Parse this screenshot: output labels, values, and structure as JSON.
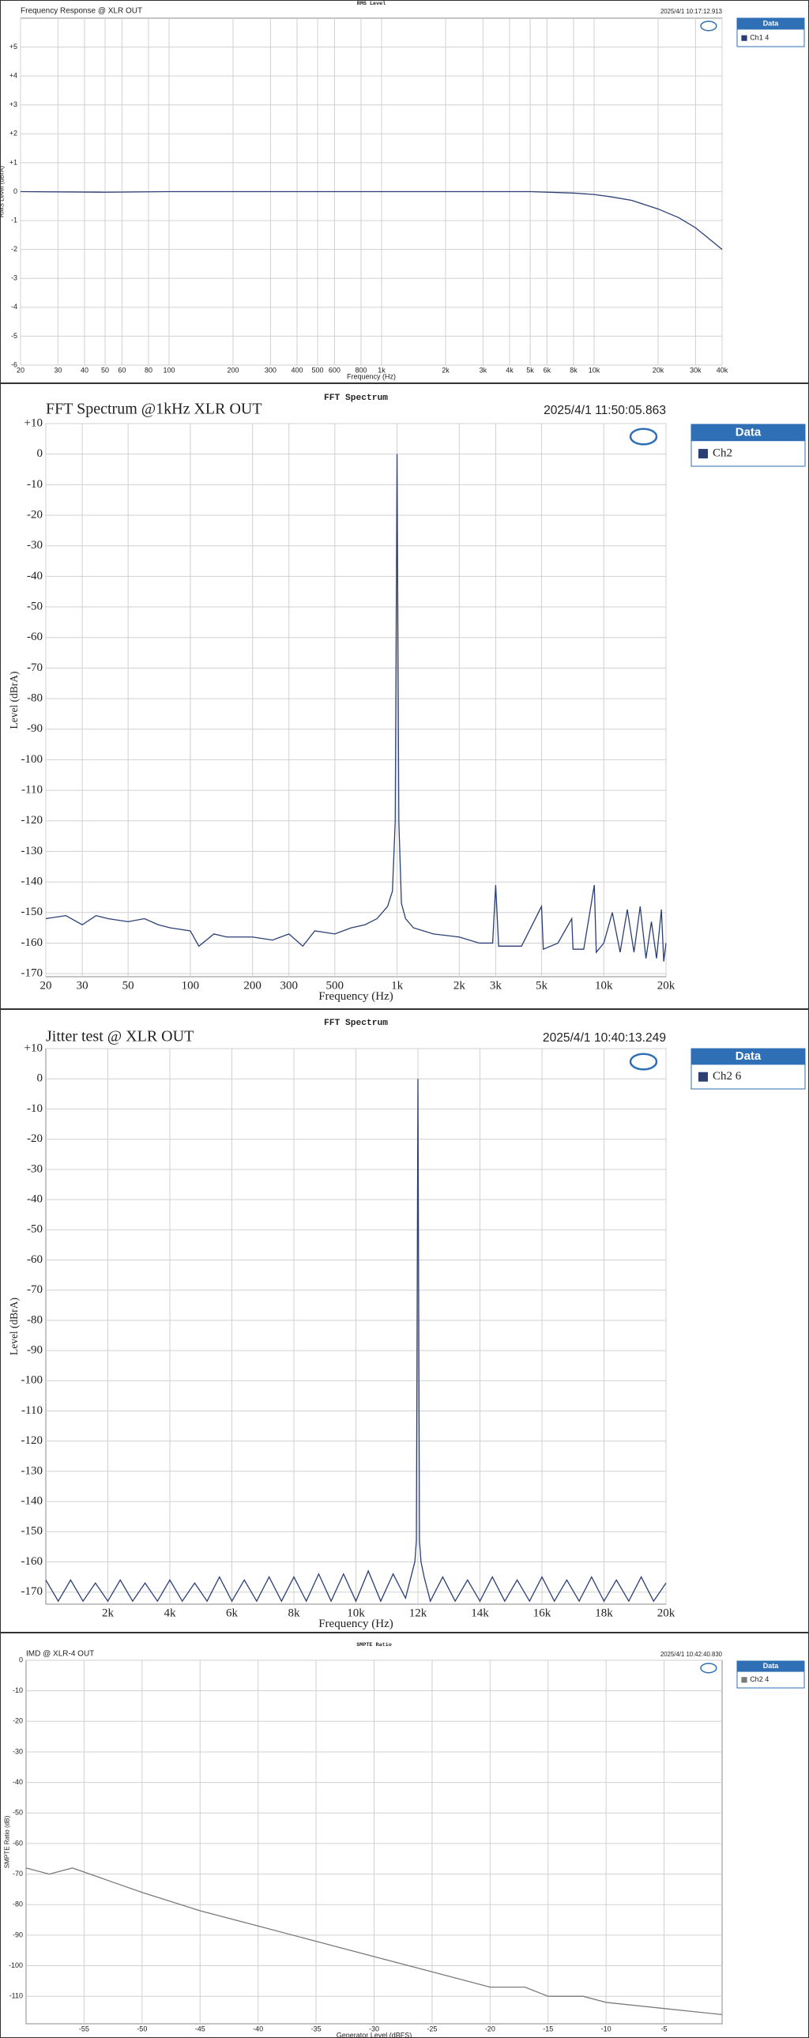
{
  "chart_data": [
    {
      "type": "line",
      "header": "RMS Level",
      "title": "Frequency Response @ XLR OUT",
      "timestamp": "2025/4/1 10:17:12.913",
      "legend_title": "Data",
      "xlabel": "Frequency (Hz)",
      "ylabel": "RMS Level (dBrA)",
      "xscale": "log",
      "grid": true,
      "xlim": [
        20,
        40000
      ],
      "ylim": [
        -6,
        6
      ],
      "xticks": [
        20,
        30,
        40,
        50,
        60,
        80,
        100,
        200,
        300,
        400,
        500,
        600,
        800,
        {
          "value": 1000,
          "label": "1k"
        },
        {
          "value": 2000,
          "label": "2k"
        },
        {
          "value": 3000,
          "label": "3k"
        },
        {
          "value": 4000,
          "label": "4k"
        },
        {
          "value": 5000,
          "label": "5k"
        },
        {
          "value": 6000,
          "label": "6k"
        },
        {
          "value": 8000,
          "label": "8k"
        },
        {
          "value": 10000,
          "label": "10k"
        },
        {
          "value": 20000,
          "label": "20k"
        },
        {
          "value": 30000,
          "label": "30k"
        },
        {
          "value": 40000,
          "label": "40k"
        }
      ],
      "yticks": [
        {
          "value": 5,
          "label": "+5"
        },
        {
          "value": 4,
          "label": "+4"
        },
        {
          "value": 3,
          "label": "+3"
        },
        {
          "value": 2,
          "label": "+2"
        },
        {
          "value": 1,
          "label": "+1"
        },
        0,
        -1,
        -2,
        -3,
        -4,
        -5,
        -6
      ],
      "x": [
        20,
        50,
        100,
        500,
        1000,
        5000,
        8000,
        10000,
        12000,
        15000,
        20000,
        25000,
        30000,
        35000,
        40000
      ],
      "series": [
        {
          "name": "Ch1 4",
          "color": "#2b3f75",
          "values": [
            0,
            -0.02,
            0,
            0,
            0,
            0,
            -0.05,
            -0.1,
            -0.18,
            -0.3,
            -0.6,
            -0.9,
            -1.25,
            -1.65,
            -2.0
          ]
        }
      ]
    },
    {
      "type": "line",
      "header": "FFT Spectrum",
      "title": "FFT Spectrum @1kHz XLR OUT",
      "timestamp": "2025/4/1 11:50:05.863",
      "legend_title": "Data",
      "xlabel": "Frequency (Hz)",
      "ylabel": "Level (dBrA)",
      "xscale": "log",
      "grid": true,
      "xlim": [
        20,
        20000
      ],
      "ylim": [
        -171,
        10
      ],
      "xticks": [
        20,
        30,
        50,
        100,
        200,
        300,
        500,
        {
          "value": 1000,
          "label": "1k"
        },
        {
          "value": 2000,
          "label": "2k"
        },
        {
          "value": 3000,
          "label": "3k"
        },
        {
          "value": 5000,
          "label": "5k"
        },
        {
          "value": 10000,
          "label": "10k"
        },
        {
          "value": 20000,
          "label": "20k"
        }
      ],
      "yticks": [
        {
          "value": 10,
          "label": "+10"
        },
        0,
        -10,
        -20,
        -30,
        -40,
        -50,
        -60,
        -70,
        -80,
        -90,
        -100,
        -110,
        -120,
        -130,
        -140,
        -150,
        -160,
        -170
      ],
      "x": [
        20,
        25,
        30,
        35,
        40,
        50,
        60,
        70,
        80,
        100,
        110,
        130,
        150,
        200,
        250,
        300,
        350,
        400,
        500,
        600,
        700,
        800,
        900,
        950,
        980,
        1000,
        1020,
        1050,
        1100,
        1200,
        1500,
        2000,
        2500,
        2900,
        3000,
        3100,
        4000,
        5000,
        5100,
        6000,
        7000,
        7100,
        8000,
        9000,
        9200,
        10000,
        11000,
        12000,
        13000,
        14000,
        15000,
        16000,
        17000,
        18000,
        19000,
        19500,
        20000
      ],
      "series": [
        {
          "name": "Ch2",
          "color": "#2b3f75",
          "values": [
            -152,
            -151,
            -154,
            -151,
            -152,
            -153,
            -152,
            -154,
            -155,
            -156,
            -161,
            -157,
            -158,
            -158,
            -159,
            -157,
            -161,
            -156,
            -157,
            -155,
            -154,
            -152,
            -148,
            -143,
            -120,
            0,
            -120,
            -147,
            -152,
            -155,
            -157,
            -158,
            -160,
            -160,
            -141,
            -161,
            -161,
            -148,
            -162,
            -160,
            -152,
            -162,
            -162,
            -141,
            -163,
            -160,
            -150,
            -163,
            -149,
            -163,
            -148,
            -165,
            -153,
            -165,
            -149,
            -166,
            -160
          ]
        }
      ]
    },
    {
      "type": "line",
      "header": "FFT Spectrum",
      "title": "Jitter test @ XLR OUT",
      "timestamp": "2025/4/1 10:40:13.249",
      "legend_title": "Data",
      "xlabel": "Frequency (Hz)",
      "ylabel": "Level (dBrA)",
      "grid": true,
      "xlim": [
        0,
        20000
      ],
      "ylim": [
        -174,
        10
      ],
      "xticks": [
        {
          "value": 2000,
          "label": "2k"
        },
        {
          "value": 4000,
          "label": "4k"
        },
        {
          "value": 6000,
          "label": "6k"
        },
        {
          "value": 8000,
          "label": "8k"
        },
        {
          "value": 10000,
          "label": "10k"
        },
        {
          "value": 12000,
          "label": "12k"
        },
        {
          "value": 14000,
          "label": "14k"
        },
        {
          "value": 16000,
          "label": "16k"
        },
        {
          "value": 18000,
          "label": "18k"
        },
        {
          "value": 20000,
          "label": "20k"
        }
      ],
      "yticks": [
        {
          "value": 10,
          "label": "+10"
        },
        0,
        -10,
        -20,
        -30,
        -40,
        -50,
        -60,
        -70,
        -80,
        -90,
        -100,
        -110,
        -120,
        -130,
        -140,
        -150,
        -160,
        -170
      ],
      "x": [
        0,
        400,
        800,
        1200,
        1600,
        2000,
        2400,
        2800,
        3200,
        3600,
        4000,
        4400,
        4800,
        5200,
        5600,
        6000,
        6400,
        6800,
        7200,
        7600,
        8000,
        8400,
        8800,
        9200,
        9600,
        10000,
        10400,
        10800,
        11200,
        11600,
        11800,
        11900,
        11950,
        12000,
        12050,
        12100,
        12200,
        12400,
        12800,
        13200,
        13600,
        14000,
        14400,
        14800,
        15200,
        15600,
        16000,
        16400,
        16800,
        17200,
        17600,
        18000,
        18400,
        18800,
        19200,
        19600,
        20000
      ],
      "series": [
        {
          "name": "Ch2 6",
          "color": "#2b3f75",
          "values": [
            -166,
            -173,
            -166,
            -173,
            -167,
            -173,
            -166,
            -173,
            -167,
            -173,
            -166,
            -173,
            -167,
            -173,
            -165,
            -173,
            -166,
            -173,
            -165,
            -173,
            -165,
            -173,
            -164,
            -173,
            -164,
            -173,
            -163,
            -173,
            -164,
            -172,
            -164,
            -160,
            -153,
            0,
            -153,
            -160,
            -165,
            -173,
            -165,
            -173,
            -166,
            -173,
            -165,
            -173,
            -166,
            -173,
            -165,
            -173,
            -166,
            -173,
            -165,
            -173,
            -166,
            -173,
            -165,
            -173,
            -167
          ]
        }
      ]
    },
    {
      "type": "line",
      "header": "SMPTE Ratio",
      "title": "IMD @ XLR-4 OUT",
      "timestamp": "2025/4/1 10:42:40.830",
      "legend_title": "Data",
      "xlabel": "Generator Level (dBFS)",
      "ylabel": "SMPTE Ratio (dB)",
      "grid": true,
      "xlim": [
        -60,
        0
      ],
      "ylim": [
        -119,
        0
      ],
      "xticks": [
        -55,
        -50,
        -45,
        -40,
        -35,
        -30,
        -25,
        -20,
        -15,
        -10,
        -5
      ],
      "yticks": [
        0,
        -10,
        -20,
        -30,
        -40,
        -50,
        -60,
        -70,
        -80,
        -90,
        -100,
        -110
      ],
      "x": [
        -60,
        -58,
        -56,
        -53,
        -50,
        -45,
        -40,
        -35,
        -30,
        -25,
        -20,
        -17,
        -15,
        -12,
        -10,
        -5,
        0
      ],
      "series": [
        {
          "name": "Ch2 4",
          "color": "#7a7a7a",
          "values": [
            -68,
            -70,
            -68,
            -72,
            -76,
            -82,
            -87,
            -92,
            -97,
            -102,
            -107,
            -107,
            -110,
            -110,
            -112,
            -114,
            -116
          ]
        }
      ]
    }
  ]
}
